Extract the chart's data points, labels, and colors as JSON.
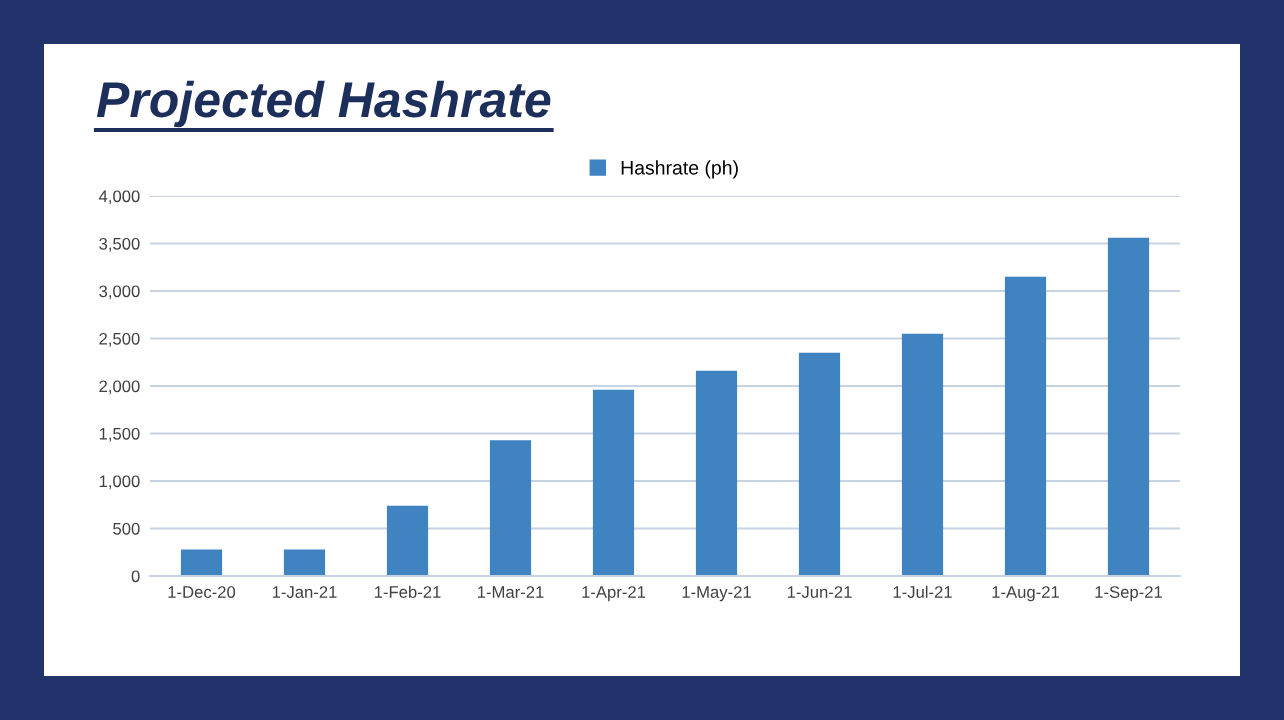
{
  "chart_data": {
    "type": "bar",
    "title": "Projected Hashrate",
    "categories": [
      "1-Dec-20",
      "1-Jan-21",
      "1-Feb-21",
      "1-Mar-21",
      "1-Apr-21",
      "1-May-21",
      "1-Jun-21",
      "1-Jul-21",
      "1-Aug-21",
      "1-Sep-21"
    ],
    "series": [
      {
        "name": "Hashrate (ph)",
        "color": "#3f83c1",
        "values": [
          280,
          280,
          740,
          1430,
          1960,
          2160,
          2350,
          2550,
          3150,
          3560
        ]
      }
    ],
    "ylim": [
      0,
      4000
    ],
    "yticks": [
      {
        "value": 0,
        "label": "0"
      },
      {
        "value": 500,
        "label": "500"
      },
      {
        "value": 1000,
        "label": "1,000"
      },
      {
        "value": 1500,
        "label": "1,500"
      },
      {
        "value": 2000,
        "label": "2,000"
      },
      {
        "value": 2500,
        "label": "2,500"
      },
      {
        "value": 3000,
        "label": "3,000"
      },
      {
        "value": 3500,
        "label": "3,500"
      },
      {
        "value": 4000,
        "label": "4,000"
      }
    ],
    "grid": "y",
    "legend": "top"
  }
}
